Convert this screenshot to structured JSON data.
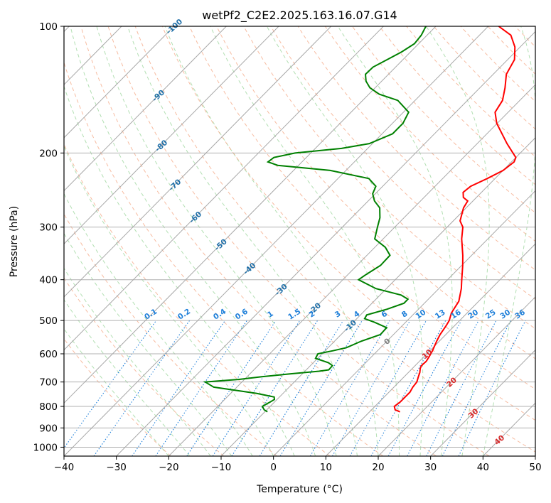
{
  "chart_data": {
    "type": "line",
    "title": "wetPf2_C2E2.2025.163.16.07.G14",
    "xlabel": "Temperature (°C)",
    "ylabel": "Pressure (hPa)",
    "xlim": [
      -40,
      50
    ],
    "ylim": [
      1050,
      100
    ],
    "y_scale": "log",
    "x_ticks": [
      -40,
      -30,
      -20,
      -10,
      0,
      10,
      20,
      30,
      40,
      50
    ],
    "x_tick_labels": [
      "−40",
      "−30",
      "−20",
      "−10",
      "0",
      "10",
      "20",
      "30",
      "40",
      "50"
    ],
    "y_ticks": [
      100,
      200,
      300,
      400,
      500,
      600,
      700,
      800,
      900,
      1000
    ],
    "y_tick_labels": [
      "100",
      "200",
      "300",
      "400",
      "500",
      "600",
      "700",
      "800",
      "900",
      "1000"
    ],
    "grid": true,
    "skew": "x",
    "series": [
      {
        "color": "#ff0000",
        "points": [
          [
            824,
            15.8
          ],
          [
            815,
            14.5
          ],
          [
            800,
            13.7
          ],
          [
            780,
            14.0
          ],
          [
            760,
            14.0
          ],
          [
            740,
            14.0
          ],
          [
            720,
            13.6
          ],
          [
            700,
            13.4
          ],
          [
            680,
            12.7
          ],
          [
            665,
            12.2
          ],
          [
            650,
            11.5
          ],
          [
            640,
            11.2
          ],
          [
            625,
            11.3
          ],
          [
            610,
            11.0
          ],
          [
            590,
            10.5
          ],
          [
            560,
            9.5
          ],
          [
            540,
            8.9
          ],
          [
            515,
            8.4
          ],
          [
            500,
            8.0
          ],
          [
            480,
            7.0
          ],
          [
            450,
            6.2
          ],
          [
            420,
            4.3
          ],
          [
            400,
            2.7
          ],
          [
            370,
            0.2
          ],
          [
            350,
            -1.7
          ],
          [
            320,
            -5.0
          ],
          [
            300,
            -7.0
          ],
          [
            290,
            -8.7
          ],
          [
            270,
            -10.5
          ],
          [
            260,
            -11.0
          ],
          [
            255,
            -12.5
          ],
          [
            248,
            -13.5
          ],
          [
            240,
            -13.2
          ],
          [
            230,
            -11.5
          ],
          [
            220,
            -10.0
          ],
          [
            210,
            -9.5
          ],
          [
            205,
            -10.0
          ],
          [
            190,
            -14.3
          ],
          [
            170,
            -20.1
          ],
          [
            160,
            -22.5
          ],
          [
            150,
            -23.3
          ],
          [
            140,
            -25.2
          ],
          [
            130,
            -27.5
          ],
          [
            120,
            -28.7
          ],
          [
            112,
            -31.0
          ],
          [
            105,
            -34.0
          ],
          [
            100,
            -38.0
          ]
        ]
      },
      {
        "color": "#008000",
        "points": [
          [
            824,
            -9.5
          ],
          [
            815,
            -10.5
          ],
          [
            800,
            -11.5
          ],
          [
            780,
            -10.8
          ],
          [
            770,
            -10.5
          ],
          [
            760,
            -11.0
          ],
          [
            745,
            -15.0
          ],
          [
            720,
            -24.4
          ],
          [
            700,
            -27.0
          ],
          [
            690,
            -21.0
          ],
          [
            680,
            -17.2
          ],
          [
            670,
            -12.5
          ],
          [
            660,
            -7.3
          ],
          [
            655,
            -5.7
          ],
          [
            640,
            -5.8
          ],
          [
            630,
            -7.1
          ],
          [
            615,
            -10.4
          ],
          [
            600,
            -10.8
          ],
          [
            590,
            -8.5
          ],
          [
            580,
            -6.5
          ],
          [
            560,
            -4.9
          ],
          [
            540,
            -2.5
          ],
          [
            520,
            -2.6
          ],
          [
            505,
            -5.9
          ],
          [
            495,
            -8.5
          ],
          [
            485,
            -8.8
          ],
          [
            470,
            -6.0
          ],
          [
            455,
            -3.9
          ],
          [
            445,
            -3.9
          ],
          [
            435,
            -6.0
          ],
          [
            420,
            -12.0
          ],
          [
            400,
            -17.0
          ],
          [
            390,
            -16.6
          ],
          [
            370,
            -15.5
          ],
          [
            350,
            -15.6
          ],
          [
            335,
            -18.0
          ],
          [
            320,
            -21.6
          ],
          [
            300,
            -23.3
          ],
          [
            285,
            -24.6
          ],
          [
            270,
            -26.5
          ],
          [
            260,
            -28.8
          ],
          [
            250,
            -30.5
          ],
          [
            240,
            -31.3
          ],
          [
            230,
            -34.1
          ],
          [
            220,
            -43.0
          ],
          [
            214,
            -54.0
          ],
          [
            210,
            -56.5
          ],
          [
            205,
            -56.2
          ],
          [
            200,
            -53.0
          ],
          [
            195,
            -45.0
          ],
          [
            190,
            -40.6
          ],
          [
            180,
            -38.0
          ],
          [
            170,
            -38.0
          ],
          [
            160,
            -39.0
          ],
          [
            150,
            -43.3
          ],
          [
            145,
            -48.0
          ],
          [
            140,
            -51.0
          ],
          [
            135,
            -53.0
          ],
          [
            130,
            -54.4
          ],
          [
            125,
            -54.3
          ],
          [
            120,
            -53.0
          ],
          [
            115,
            -51.7
          ],
          [
            110,
            -50.8
          ],
          [
            105,
            -51.1
          ],
          [
            100,
            -51.9
          ]
        ]
      }
    ],
    "isotherm_labels": [
      "-100",
      "-90",
      "-80",
      "-70",
      "-60",
      "-50",
      "-40",
      "-30",
      "-20",
      "-10",
      "0",
      "10",
      "20",
      "30",
      "40"
    ],
    "mixing_ratio_labels": [
      "0.1",
      "0.2",
      "0.4",
      "0.6",
      "1",
      "1.5",
      "2",
      "3",
      "4",
      "6",
      "8",
      "10",
      "13",
      "16",
      "20",
      "25",
      "30",
      "36"
    ],
    "colors": {
      "temperature": "#ff0000",
      "dewpoint": "#008000",
      "dry_adiabat": "#f4a582",
      "moist_adiabat": "#7fc97f",
      "mixing_ratio": "#1e7fd9",
      "isotherm_label": "#1f6fa8",
      "warm_isotherm_label": "#d62728",
      "zero_isotherm_label": "#808080"
    }
  }
}
